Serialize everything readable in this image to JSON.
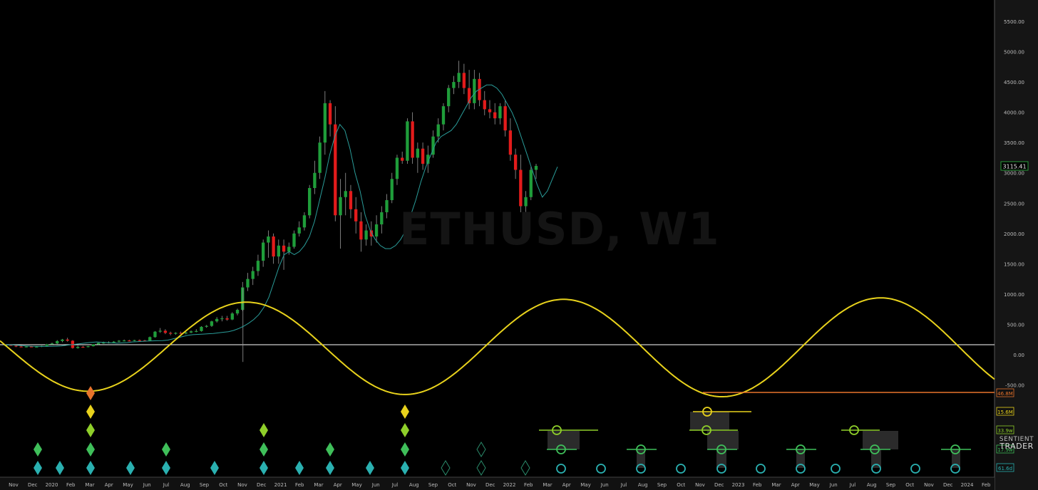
{
  "watermark": "ETHUSD, W1",
  "brand": {
    "line1": "SENTIENT",
    "line2": "TRADER"
  },
  "colors": {
    "background": "#000000",
    "bull": "#1f9d3a",
    "bear": "#e31b1b",
    "ma": "#2a9d9a",
    "composite": "#e8d21c",
    "zero_line": "#ffffff",
    "cyc_46_8M": "#e8742c",
    "cyc_15_6M": "#e8d21c",
    "cyc_33_9w": "#8fcf2a",
    "cyc_17_9w": "#3fbf5a",
    "cyc_61_6d": "#2ab0b0"
  },
  "chart_data": {
    "type": "candlestick",
    "symbol": "ETHUSD, W1",
    "x_labels": [
      "Nov",
      "Dec",
      "2020",
      "Feb",
      "Mar",
      "Apr",
      "May",
      "Jun",
      "Jul",
      "Aug",
      "Sep",
      "Oct",
      "Nov",
      "Dec",
      "2021",
      "Feb",
      "Mar",
      "Apr",
      "May",
      "Jun",
      "Jul",
      "Aug",
      "Sep",
      "Oct",
      "Nov",
      "Dec",
      "2022",
      "Feb",
      "Mar",
      "Apr",
      "May",
      "Jun",
      "Jul",
      "Aug",
      "Sep",
      "Oct",
      "Nov",
      "Dec",
      "2023",
      "Feb",
      "Mar",
      "Apr",
      "May",
      "Jun",
      "Jul",
      "Aug",
      "Sep",
      "Oct",
      "Nov",
      "Dec",
      "2024",
      "Feb"
    ],
    "y_ticks": [
      5500,
      5000,
      4500,
      4000,
      3500,
      3000,
      2500,
      2000,
      1500,
      1000,
      500,
      0,
      -500
    ],
    "y_tick_labels": [
      "5500.00",
      "5000.00",
      "4500.00",
      "4000.00",
      "3500.00",
      "3000.00",
      "2500.00",
      "2000.00",
      "1500.00",
      "1000.00",
      "500.00",
      "0.00",
      "-500.00"
    ],
    "ylim": [
      -650,
      5800
    ],
    "last_price": "3115.41",
    "candles": [
      {
        "o": 150,
        "h": 170,
        "l": 140,
        "c": 160
      },
      {
        "o": 160,
        "h": 175,
        "l": 145,
        "c": 150
      },
      {
        "o": 150,
        "h": 160,
        "l": 125,
        "c": 135
      },
      {
        "o": 135,
        "h": 150,
        "l": 125,
        "c": 130
      },
      {
        "o": 130,
        "h": 140,
        "l": 120,
        "c": 135
      },
      {
        "o": 135,
        "h": 145,
        "l": 125,
        "c": 128
      },
      {
        "o": 128,
        "h": 140,
        "l": 120,
        "c": 132
      },
      {
        "o": 132,
        "h": 150,
        "l": 125,
        "c": 145
      },
      {
        "o": 145,
        "h": 180,
        "l": 140,
        "c": 170
      },
      {
        "o": 170,
        "h": 200,
        "l": 160,
        "c": 185
      },
      {
        "o": 185,
        "h": 240,
        "l": 175,
        "c": 225
      },
      {
        "o": 225,
        "h": 260,
        "l": 205,
        "c": 250
      },
      {
        "o": 250,
        "h": 280,
        "l": 215,
        "c": 230
      },
      {
        "o": 230,
        "h": 240,
        "l": 100,
        "c": 110
      },
      {
        "o": 110,
        "h": 150,
        "l": 100,
        "c": 130
      },
      {
        "o": 130,
        "h": 145,
        "l": 115,
        "c": 125
      },
      {
        "o": 125,
        "h": 145,
        "l": 120,
        "c": 140
      },
      {
        "o": 140,
        "h": 175,
        "l": 135,
        "c": 170
      },
      {
        "o": 170,
        "h": 200,
        "l": 160,
        "c": 195
      },
      {
        "o": 195,
        "h": 215,
        "l": 180,
        "c": 200
      },
      {
        "o": 200,
        "h": 220,
        "l": 185,
        "c": 205
      },
      {
        "o": 205,
        "h": 225,
        "l": 195,
        "c": 215
      },
      {
        "o": 215,
        "h": 240,
        "l": 205,
        "c": 230
      },
      {
        "o": 230,
        "h": 250,
        "l": 220,
        "c": 235
      },
      {
        "o": 235,
        "h": 245,
        "l": 220,
        "c": 230
      },
      {
        "o": 230,
        "h": 245,
        "l": 222,
        "c": 240
      },
      {
        "o": 240,
        "h": 250,
        "l": 225,
        "c": 235
      },
      {
        "o": 235,
        "h": 245,
        "l": 220,
        "c": 230
      },
      {
        "o": 230,
        "h": 300,
        "l": 225,
        "c": 290
      },
      {
        "o": 290,
        "h": 390,
        "l": 280,
        "c": 380
      },
      {
        "o": 380,
        "h": 440,
        "l": 360,
        "c": 395
      },
      {
        "o": 395,
        "h": 420,
        "l": 340,
        "c": 360
      },
      {
        "o": 360,
        "h": 380,
        "l": 320,
        "c": 345
      },
      {
        "o": 345,
        "h": 370,
        "l": 330,
        "c": 360
      },
      {
        "o": 360,
        "h": 380,
        "l": 340,
        "c": 350
      },
      {
        "o": 350,
        "h": 375,
        "l": 335,
        "c": 365
      },
      {
        "o": 365,
        "h": 400,
        "l": 355,
        "c": 385
      },
      {
        "o": 385,
        "h": 420,
        "l": 370,
        "c": 390
      },
      {
        "o": 390,
        "h": 470,
        "l": 380,
        "c": 460
      },
      {
        "o": 460,
        "h": 490,
        "l": 445,
        "c": 475
      },
      {
        "o": 475,
        "h": 560,
        "l": 460,
        "c": 550
      },
      {
        "o": 550,
        "h": 620,
        "l": 530,
        "c": 590
      },
      {
        "o": 590,
        "h": 640,
        "l": 550,
        "c": 600
      },
      {
        "o": 600,
        "h": 640,
        "l": 560,
        "c": 580
      },
      {
        "o": 580,
        "h": 700,
        "l": 570,
        "c": 680
      },
      {
        "o": 680,
        "h": 760,
        "l": 650,
        "c": 740
      },
      {
        "o": 740,
        "h": 1200,
        "l": 720,
        "c": 1110
      },
      {
        "o": 1110,
        "h": 1350,
        "l": 1050,
        "c": 1250
      },
      {
        "o": 1250,
        "h": 1450,
        "l": 1150,
        "c": 1380
      },
      {
        "o": 1380,
        "h": 1650,
        "l": 1300,
        "c": 1550
      },
      {
        "o": 1550,
        "h": 1900,
        "l": 1450,
        "c": 1850
      },
      {
        "o": 1850,
        "h": 2050,
        "l": 1600,
        "c": 1950
      },
      {
        "o": 1950,
        "h": 2000,
        "l": 1500,
        "c": 1620
      },
      {
        "o": 1620,
        "h": 1900,
        "l": 1500,
        "c": 1800
      },
      {
        "o": 1800,
        "h": 1900,
        "l": 1400,
        "c": 1700
      },
      {
        "o": 1700,
        "h": 1850,
        "l": 1650,
        "c": 1780
      },
      {
        "o": 1780,
        "h": 2050,
        "l": 1750,
        "c": 2000
      },
      {
        "o": 2000,
        "h": 2200,
        "l": 1950,
        "c": 2100
      },
      {
        "o": 2100,
        "h": 2350,
        "l": 2050,
        "c": 2300
      },
      {
        "o": 2300,
        "h": 2800,
        "l": 2250,
        "c": 2750
      },
      {
        "o": 2750,
        "h": 3200,
        "l": 2650,
        "c": 3000
      },
      {
        "o": 3000,
        "h": 3600,
        "l": 2900,
        "c": 3500
      },
      {
        "o": 3500,
        "h": 4350,
        "l": 3300,
        "c": 4150
      },
      {
        "o": 4150,
        "h": 4200,
        "l": 3600,
        "c": 3800
      },
      {
        "o": 3800,
        "h": 4100,
        "l": 2200,
        "c": 2300
      },
      {
        "o": 2300,
        "h": 2900,
        "l": 1750,
        "c": 2600
      },
      {
        "o": 2600,
        "h": 3000,
        "l": 2300,
        "c": 2700
      },
      {
        "o": 2700,
        "h": 2800,
        "l": 2250,
        "c": 2400
      },
      {
        "o": 2400,
        "h": 2600,
        "l": 2000,
        "c": 2200
      },
      {
        "o": 2200,
        "h": 2350,
        "l": 1700,
        "c": 1900
      },
      {
        "o": 1900,
        "h": 2150,
        "l": 1800,
        "c": 2050
      },
      {
        "o": 2050,
        "h": 2200,
        "l": 1800,
        "c": 1950
      },
      {
        "o": 1950,
        "h": 2300,
        "l": 1850,
        "c": 2150
      },
      {
        "o": 2150,
        "h": 2450,
        "l": 2000,
        "c": 2350
      },
      {
        "o": 2350,
        "h": 2650,
        "l": 2250,
        "c": 2550
      },
      {
        "o": 2550,
        "h": 3000,
        "l": 2500,
        "c": 2900
      },
      {
        "o": 2900,
        "h": 3300,
        "l": 2800,
        "c": 3250
      },
      {
        "o": 3250,
        "h": 3350,
        "l": 3150,
        "c": 3200
      },
      {
        "o": 3200,
        "h": 3900,
        "l": 3150,
        "c": 3850
      },
      {
        "o": 3850,
        "h": 4000,
        "l": 3150,
        "c": 3250
      },
      {
        "o": 3250,
        "h": 3500,
        "l": 3000,
        "c": 3400
      },
      {
        "o": 3400,
        "h": 3500,
        "l": 3050,
        "c": 3150
      },
      {
        "o": 3150,
        "h": 3450,
        "l": 3000,
        "c": 3300
      },
      {
        "o": 3300,
        "h": 3700,
        "l": 3250,
        "c": 3600
      },
      {
        "o": 3600,
        "h": 3900,
        "l": 3500,
        "c": 3800
      },
      {
        "o": 3800,
        "h": 4150,
        "l": 3700,
        "c": 4100
      },
      {
        "o": 4100,
        "h": 4450,
        "l": 4000,
        "c": 4400
      },
      {
        "o": 4400,
        "h": 4600,
        "l": 4300,
        "c": 4500
      },
      {
        "o": 4500,
        "h": 4850,
        "l": 4400,
        "c": 4650
      },
      {
        "o": 4650,
        "h": 4800,
        "l": 4300,
        "c": 4400
      },
      {
        "o": 4400,
        "h": 4700,
        "l": 4050,
        "c": 4150
      },
      {
        "o": 4150,
        "h": 4700,
        "l": 4050,
        "c": 4550
      },
      {
        "o": 4550,
        "h": 4650,
        "l": 4100,
        "c": 4200
      },
      {
        "o": 4200,
        "h": 4350,
        "l": 3950,
        "c": 4050
      },
      {
        "o": 4050,
        "h": 4200,
        "l": 3900,
        "c": 4000
      },
      {
        "o": 4000,
        "h": 4150,
        "l": 3800,
        "c": 3900
      },
      {
        "o": 3900,
        "h": 4150,
        "l": 3800,
        "c": 4100
      },
      {
        "o": 4100,
        "h": 4200,
        "l": 3600,
        "c": 3700
      },
      {
        "o": 3700,
        "h": 3900,
        "l": 3200,
        "c": 3300
      },
      {
        "o": 3300,
        "h": 3400,
        "l": 2900,
        "c": 3050
      },
      {
        "o": 3050,
        "h": 3300,
        "l": 2350,
        "c": 2450
      },
      {
        "o": 2450,
        "h": 2700,
        "l": 2200,
        "c": 2600
      },
      {
        "o": 2600,
        "h": 3100,
        "l": 2550,
        "c": 3050
      },
      {
        "o": 3050,
        "h": 3150,
        "l": 2900,
        "c": 3115
      }
    ],
    "ma_line": [
      160,
      162,
      158,
      152,
      145,
      140,
      138,
      136,
      136,
      138,
      140,
      145,
      155,
      165,
      175,
      185,
      195,
      205,
      210,
      205,
      200,
      195,
      190,
      195,
      200,
      210,
      215,
      220,
      225,
      228,
      230,
      232,
      240,
      260,
      280,
      300,
      320,
      330,
      335,
      340,
      345,
      350,
      360,
      370,
      380,
      400,
      430,
      470,
      520,
      580,
      660,
      780,
      950,
      1200,
      1450,
      1650,
      1700,
      1650,
      1700,
      1800,
      1950,
      2200,
      2550,
      2900,
      3300,
      3600,
      3800,
      3700,
      3400,
      3000,
      2700,
      2300,
      2050,
      1900,
      1800,
      1750,
      1750,
      1800,
      1900,
      2050,
      2300,
      2550,
      2850,
      3100,
      3300,
      3500,
      3600,
      3650,
      3700,
      3800,
      3950,
      4100,
      4250,
      4350,
      4400,
      4450,
      4450,
      4400,
      4300,
      4150,
      4000,
      3800,
      3550,
      3300,
      3050,
      2800,
      2600,
      2700,
      2900,
      3100
    ],
    "composite_cycle": {
      "label": "composite",
      "peaks_troughs": "sinusoidal model"
    },
    "cycles": [
      {
        "name": "46.8M",
        "color": "#e8742c"
      },
      {
        "name": "15.6M",
        "color": "#e8d21c"
      },
      {
        "name": "33.9w",
        "color": "#8fcf2a"
      },
      {
        "name": "17.9w",
        "color": "#3fbf5a"
      },
      {
        "name": "61.6d",
        "color": "#2ab0b0"
      }
    ]
  }
}
